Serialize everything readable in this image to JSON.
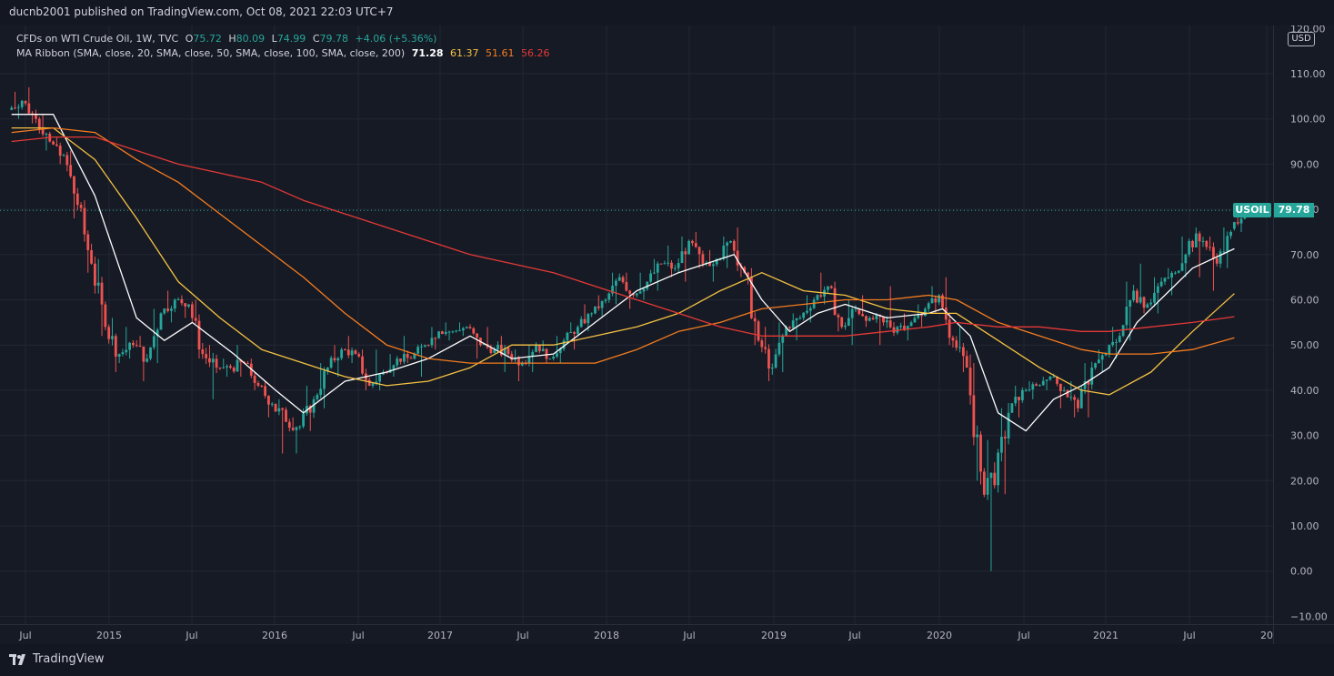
{
  "header": {
    "published": "ducnb2001 published on TradingView.com, Oct 08, 2021 22:03 UTC+7"
  },
  "legend": {
    "instrument": "CFDs on WTI Crude Oil, 1W, TVC",
    "open_label": "O",
    "open": "75.72",
    "high_label": "H",
    "high": "80.09",
    "low_label": "L",
    "low": "74.99",
    "close_label": "C",
    "close": "79.78",
    "change": "+4.06 (+5.36%)",
    "ma_label": "MA Ribbon (SMA, close, 20, SMA, close, 50, SMA, close, 100, SMA, close, 200)",
    "ma_values": [
      "71.28",
      "61.37",
      "51.61",
      "56.26"
    ]
  },
  "price_axis": {
    "currency": "USD",
    "top_partial": "120.00",
    "ticks": [
      "110.00",
      "100.00",
      "90.00",
      "80.00",
      "70.00",
      "60.00",
      "50.00",
      "40.00",
      "30.00",
      "20.00",
      "10.00",
      "0.00",
      "−10.00"
    ]
  },
  "time_axis": {
    "ticks": [
      "Jul",
      "2015",
      "Jul",
      "2016",
      "Jul",
      "2017",
      "Jul",
      "2018",
      "Jul",
      "2019",
      "Jul",
      "2020",
      "Jul",
      "2021",
      "Jul",
      "20"
    ]
  },
  "last_price": {
    "symbol": "USOIL",
    "value": "79.78"
  },
  "footer": {
    "brand": "TradingView"
  },
  "colors": {
    "background": "#161a25",
    "up": "#26a69a",
    "down": "#ef5350",
    "ma20": "#ffffff",
    "ma50": "#f5c242",
    "ma100": "#f57c1f",
    "ma200": "#e53935"
  },
  "chart_data": {
    "type": "line",
    "title": "CFDs on WTI Crude Oil, 1W, TVC",
    "xlabel": "",
    "ylabel": "USD",
    "ylim": [
      -10,
      120
    ],
    "x_ticks": [
      "Jul",
      "2015",
      "Jul",
      "2016",
      "Jul",
      "2017",
      "Jul",
      "2018",
      "Jul",
      "2019",
      "Jul",
      "2020",
      "Jul",
      "2021",
      "Jul",
      "20"
    ],
    "price_path": [
      [
        "2014-06",
        102,
        106,
        100,
        104
      ],
      [
        "2014-07",
        104,
        107,
        99,
        100
      ],
      [
        "2014-08",
        100,
        101,
        93,
        95
      ],
      [
        "2014-09",
        95,
        96,
        90,
        92
      ],
      [
        "2014-10",
        92,
        93,
        78,
        81
      ],
      [
        "2014-11",
        81,
        82,
        66,
        68
      ],
      [
        "2014-12",
        68,
        69,
        52,
        54
      ],
      [
        "2015-01",
        54,
        56,
        44,
        48
      ],
      [
        "2015-02",
        48,
        54,
        47,
        50
      ],
      [
        "2015-03",
        50,
        52,
        42,
        47
      ],
      [
        "2015-04",
        47,
        58,
        46,
        57
      ],
      [
        "2015-05",
        57,
        62,
        55,
        60
      ],
      [
        "2015-06",
        60,
        61,
        56,
        59
      ],
      [
        "2015-07",
        59,
        60,
        47,
        48
      ],
      [
        "2015-08",
        48,
        50,
        38,
        45
      ],
      [
        "2015-09",
        45,
        47,
        43,
        45
      ],
      [
        "2015-10",
        45,
        50,
        43,
        46
      ],
      [
        "2015-11",
        46,
        47,
        40,
        41
      ],
      [
        "2015-12",
        41,
        42,
        34,
        37
      ],
      [
        "2016-01",
        37,
        38,
        26,
        33
      ],
      [
        "2016-02",
        33,
        34,
        26,
        32
      ],
      [
        "2016-03",
        32,
        41,
        31,
        38
      ],
      [
        "2016-04",
        38,
        46,
        36,
        45
      ],
      [
        "2016-05",
        45,
        50,
        43,
        49
      ],
      [
        "2016-06",
        49,
        52,
        46,
        48
      ],
      [
        "2016-07",
        48,
        49,
        40,
        41
      ],
      [
        "2016-08",
        41,
        49,
        40,
        44
      ],
      [
        "2016-09",
        44,
        48,
        43,
        47
      ],
      [
        "2016-10",
        47,
        52,
        46,
        47
      ],
      [
        "2016-11",
        47,
        50,
        43,
        50
      ],
      [
        "2016-12",
        50,
        54,
        49,
        53
      ],
      [
        "2017-01",
        53,
        55,
        51,
        53
      ],
      [
        "2017-02",
        53,
        55,
        52,
        54
      ],
      [
        "2017-03",
        54,
        54,
        47,
        50
      ],
      [
        "2017-04",
        50,
        54,
        48,
        49
      ],
      [
        "2017-05",
        49,
        52,
        44,
        48
      ],
      [
        "2017-06",
        48,
        49,
        42,
        46
      ],
      [
        "2017-07",
        46,
        50,
        44,
        50
      ],
      [
        "2017-08",
        50,
        51,
        46,
        47
      ],
      [
        "2017-09",
        47,
        52,
        46,
        51
      ],
      [
        "2017-10",
        51,
        55,
        49,
        54
      ],
      [
        "2017-11",
        54,
        59,
        53,
        57
      ],
      [
        "2017-12",
        57,
        61,
        56,
        60
      ],
      [
        "2018-01",
        60,
        66,
        59,
        65
      ],
      [
        "2018-02",
        65,
        66,
        58,
        61
      ],
      [
        "2018-03",
        61,
        66,
        60,
        64
      ],
      [
        "2018-04",
        64,
        69,
        62,
        68
      ],
      [
        "2018-05",
        68,
        72,
        65,
        67
      ],
      [
        "2018-06",
        67,
        74,
        64,
        73
      ],
      [
        "2018-07",
        73,
        75,
        67,
        68
      ],
      [
        "2018-08",
        68,
        71,
        64,
        69
      ],
      [
        "2018-09",
        69,
        74,
        67,
        73
      ],
      [
        "2018-10",
        73,
        76,
        65,
        66
      ],
      [
        "2018-11",
        66,
        67,
        50,
        51
      ],
      [
        "2018-12",
        51,
        54,
        42,
        45
      ],
      [
        "2019-01",
        45,
        55,
        44,
        54
      ],
      [
        "2019-02",
        54,
        57,
        51,
        56
      ],
      [
        "2019-03",
        56,
        61,
        55,
        60
      ],
      [
        "2019-04",
        60,
        66,
        59,
        63
      ],
      [
        "2019-05",
        63,
        64,
        53,
        54
      ],
      [
        "2019-06",
        54,
        60,
        50,
        58
      ],
      [
        "2019-07",
        58,
        61,
        54,
        56
      ],
      [
        "2019-08",
        56,
        57,
        50,
        55
      ],
      [
        "2019-09",
        55,
        63,
        52,
        54
      ],
      [
        "2019-10",
        54,
        57,
        51,
        55
      ],
      [
        "2019-11",
        55,
        59,
        54,
        58
      ],
      [
        "2019-12",
        58,
        63,
        57,
        61
      ],
      [
        "2020-01",
        61,
        65,
        50,
        51
      ],
      [
        "2020-02",
        51,
        54,
        44,
        45
      ],
      [
        "2020-03",
        45,
        46,
        20,
        22
      ],
      [
        "2020-04",
        22,
        29,
        0,
        19
      ],
      [
        "2020-05",
        19,
        36,
        17,
        35
      ],
      [
        "2020-06",
        35,
        41,
        34,
        40
      ],
      [
        "2020-07",
        40,
        42,
        38,
        41
      ],
      [
        "2020-08",
        41,
        43,
        40,
        43
      ],
      [
        "2020-09",
        43,
        43,
        36,
        40
      ],
      [
        "2020-10",
        40,
        42,
        34,
        36
      ],
      [
        "2020-11",
        36,
        46,
        34,
        45
      ],
      [
        "2020-12",
        45,
        49,
        44,
        48
      ],
      [
        "2021-01",
        48,
        54,
        47,
        52
      ],
      [
        "2021-02",
        52,
        64,
        51,
        62
      ],
      [
        "2021-03",
        62,
        68,
        57,
        59
      ],
      [
        "2021-04",
        59,
        65,
        57,
        64
      ],
      [
        "2021-05",
        64,
        67,
        61,
        66
      ],
      [
        "2021-06",
        66,
        74,
        65,
        73
      ],
      [
        "2021-07",
        73,
        76,
        65,
        73
      ],
      [
        "2021-08",
        73,
        74,
        62,
        68
      ],
      [
        "2021-09",
        68,
        76,
        67,
        75
      ],
      [
        "2021-10",
        75.72,
        80.09,
        74.99,
        79.78
      ]
    ],
    "series": [
      {
        "name": "20",
        "points": [
          [
            "2014-06",
            101
          ],
          [
            "2014-09",
            101
          ],
          [
            "2014-12",
            83
          ],
          [
            "2015-03",
            56
          ],
          [
            "2015-05",
            51
          ],
          [
            "2015-07",
            55
          ],
          [
            "2015-10",
            48
          ],
          [
            "2016-01",
            40
          ],
          [
            "2016-03",
            35
          ],
          [
            "2016-06",
            42
          ],
          [
            "2016-09",
            44
          ],
          [
            "2016-12",
            47
          ],
          [
            "2017-03",
            52
          ],
          [
            "2017-06",
            47
          ],
          [
            "2017-09",
            48
          ],
          [
            "2017-12",
            55
          ],
          [
            "2018-03",
            62
          ],
          [
            "2018-06",
            66
          ],
          [
            "2018-09",
            69
          ],
          [
            "2018-10",
            70
          ],
          [
            "2018-12",
            60
          ],
          [
            "2019-02",
            53
          ],
          [
            "2019-04",
            57
          ],
          [
            "2019-06",
            59
          ],
          [
            "2019-09",
            56
          ],
          [
            "2019-12",
            57
          ],
          [
            "2020-01",
            58
          ],
          [
            "2020-03",
            52
          ],
          [
            "2020-05",
            35
          ],
          [
            "2020-07",
            31
          ],
          [
            "2020-09",
            38
          ],
          [
            "2020-11",
            41
          ],
          [
            "2021-01",
            45
          ],
          [
            "2021-03",
            55
          ],
          [
            "2021-05",
            61
          ],
          [
            "2021-07",
            67
          ],
          [
            "2021-10",
            71.28
          ]
        ]
      },
      {
        "name": "50",
        "points": [
          [
            "2014-06",
            98
          ],
          [
            "2014-09",
            98
          ],
          [
            "2014-12",
            91
          ],
          [
            "2015-03",
            78
          ],
          [
            "2015-06",
            64
          ],
          [
            "2015-09",
            56
          ],
          [
            "2015-12",
            49
          ],
          [
            "2016-03",
            46
          ],
          [
            "2016-06",
            43
          ],
          [
            "2016-09",
            41
          ],
          [
            "2016-12",
            42
          ],
          [
            "2017-03",
            45
          ],
          [
            "2017-06",
            50
          ],
          [
            "2017-09",
            50
          ],
          [
            "2017-12",
            52
          ],
          [
            "2018-03",
            54
          ],
          [
            "2018-06",
            57
          ],
          [
            "2018-09",
            62
          ],
          [
            "2018-12",
            66
          ],
          [
            "2019-03",
            62
          ],
          [
            "2019-06",
            61
          ],
          [
            "2019-09",
            58
          ],
          [
            "2019-12",
            57
          ],
          [
            "2020-02",
            57
          ],
          [
            "2020-05",
            51
          ],
          [
            "2020-08",
            45
          ],
          [
            "2020-11",
            40
          ],
          [
            "2021-01",
            39
          ],
          [
            "2021-04",
            44
          ],
          [
            "2021-07",
            53
          ],
          [
            "2021-10",
            61.37
          ]
        ]
      },
      {
        "name": "100",
        "points": [
          [
            "2014-06",
            97
          ],
          [
            "2014-09",
            98
          ],
          [
            "2014-12",
            97
          ],
          [
            "2015-03",
            91
          ],
          [
            "2015-06",
            86
          ],
          [
            "2015-09",
            79
          ],
          [
            "2015-12",
            72
          ],
          [
            "2016-03",
            65
          ],
          [
            "2016-06",
            57
          ],
          [
            "2016-09",
            50
          ],
          [
            "2016-12",
            47
          ],
          [
            "2017-03",
            46
          ],
          [
            "2017-06",
            46
          ],
          [
            "2017-09",
            46
          ],
          [
            "2017-12",
            46
          ],
          [
            "2018-03",
            49
          ],
          [
            "2018-06",
            53
          ],
          [
            "2018-09",
            55
          ],
          [
            "2018-12",
            58
          ],
          [
            "2019-03",
            59
          ],
          [
            "2019-06",
            60
          ],
          [
            "2019-09",
            60
          ],
          [
            "2019-12",
            61
          ],
          [
            "2020-02",
            60
          ],
          [
            "2020-05",
            55
          ],
          [
            "2020-08",
            52
          ],
          [
            "2020-11",
            49
          ],
          [
            "2021-01",
            48
          ],
          [
            "2021-04",
            48
          ],
          [
            "2021-07",
            49
          ],
          [
            "2021-10",
            51.61
          ]
        ]
      },
      {
        "name": "200",
        "points": [
          [
            "2014-06",
            95
          ],
          [
            "2014-09",
            96
          ],
          [
            "2014-12",
            96
          ],
          [
            "2015-03",
            93
          ],
          [
            "2015-06",
            90
          ],
          [
            "2015-09",
            88
          ],
          [
            "2015-12",
            86
          ],
          [
            "2016-03",
            82
          ],
          [
            "2016-06",
            79
          ],
          [
            "2016-09",
            76
          ],
          [
            "2016-12",
            73
          ],
          [
            "2017-03",
            70
          ],
          [
            "2017-06",
            68
          ],
          [
            "2017-09",
            66
          ],
          [
            "2017-12",
            63
          ],
          [
            "2018-03",
            60
          ],
          [
            "2018-06",
            57
          ],
          [
            "2018-09",
            54
          ],
          [
            "2018-12",
            52
          ],
          [
            "2019-03",
            52
          ],
          [
            "2019-06",
            52
          ],
          [
            "2019-09",
            53
          ],
          [
            "2019-12",
            54
          ],
          [
            "2020-02",
            55
          ],
          [
            "2020-05",
            54
          ],
          [
            "2020-08",
            54
          ],
          [
            "2020-11",
            53
          ],
          [
            "2021-01",
            53
          ],
          [
            "2021-04",
            54
          ],
          [
            "2021-07",
            55
          ],
          [
            "2021-10",
            56.26
          ]
        ]
      }
    ]
  }
}
